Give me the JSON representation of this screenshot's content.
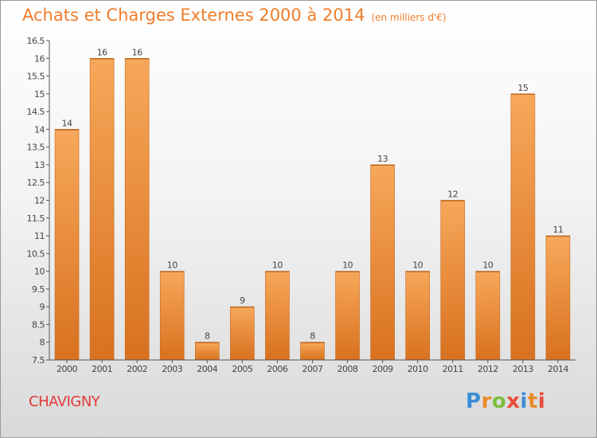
{
  "title": "Achats et Charges Externes 2000 à 2014",
  "subtitle": "(en milliers d'€)",
  "place": "CHAVIGNY",
  "logo": {
    "letters": [
      "P",
      "r",
      "o",
      "x",
      "i",
      "t",
      "i"
    ],
    "colors": [
      "#3b8ed6",
      "#e98b2a",
      "#7bbf3a",
      "#e84d3b",
      "#3b8ed6",
      "#e98b2a",
      "#e84d3b"
    ]
  },
  "colors": {
    "bar_top": "#f7a85a",
    "bar_bottom": "#d8711f",
    "axis": "#555555"
  },
  "chart_data": {
    "type": "bar",
    "title": "Achats et Charges Externes 2000 à 2014",
    "xlabel": "",
    "ylabel": "",
    "ylim": [
      7.5,
      16.5
    ],
    "yticks": [
      "7.5",
      "8",
      "8.5",
      "9",
      "9.5",
      "10",
      "10.5",
      "11",
      "11.5",
      "12",
      "12.5",
      "13",
      "13.5",
      "14",
      "14.5",
      "15",
      "15.5",
      "16",
      "16.5"
    ],
    "categories": [
      "2000",
      "2001",
      "2002",
      "2003",
      "2004",
      "2005",
      "2006",
      "2007",
      "2008",
      "2009",
      "2010",
      "2011",
      "2012",
      "2013",
      "2014"
    ],
    "values": [
      14,
      16,
      16,
      10,
      8,
      9,
      10,
      8,
      10,
      13,
      10,
      12,
      10,
      15,
      11
    ],
    "labels": [
      "14",
      "16",
      "16",
      "10",
      "8",
      "9",
      "10",
      "8",
      "10",
      "13",
      "10",
      "12",
      "10",
      "15",
      "11"
    ]
  }
}
